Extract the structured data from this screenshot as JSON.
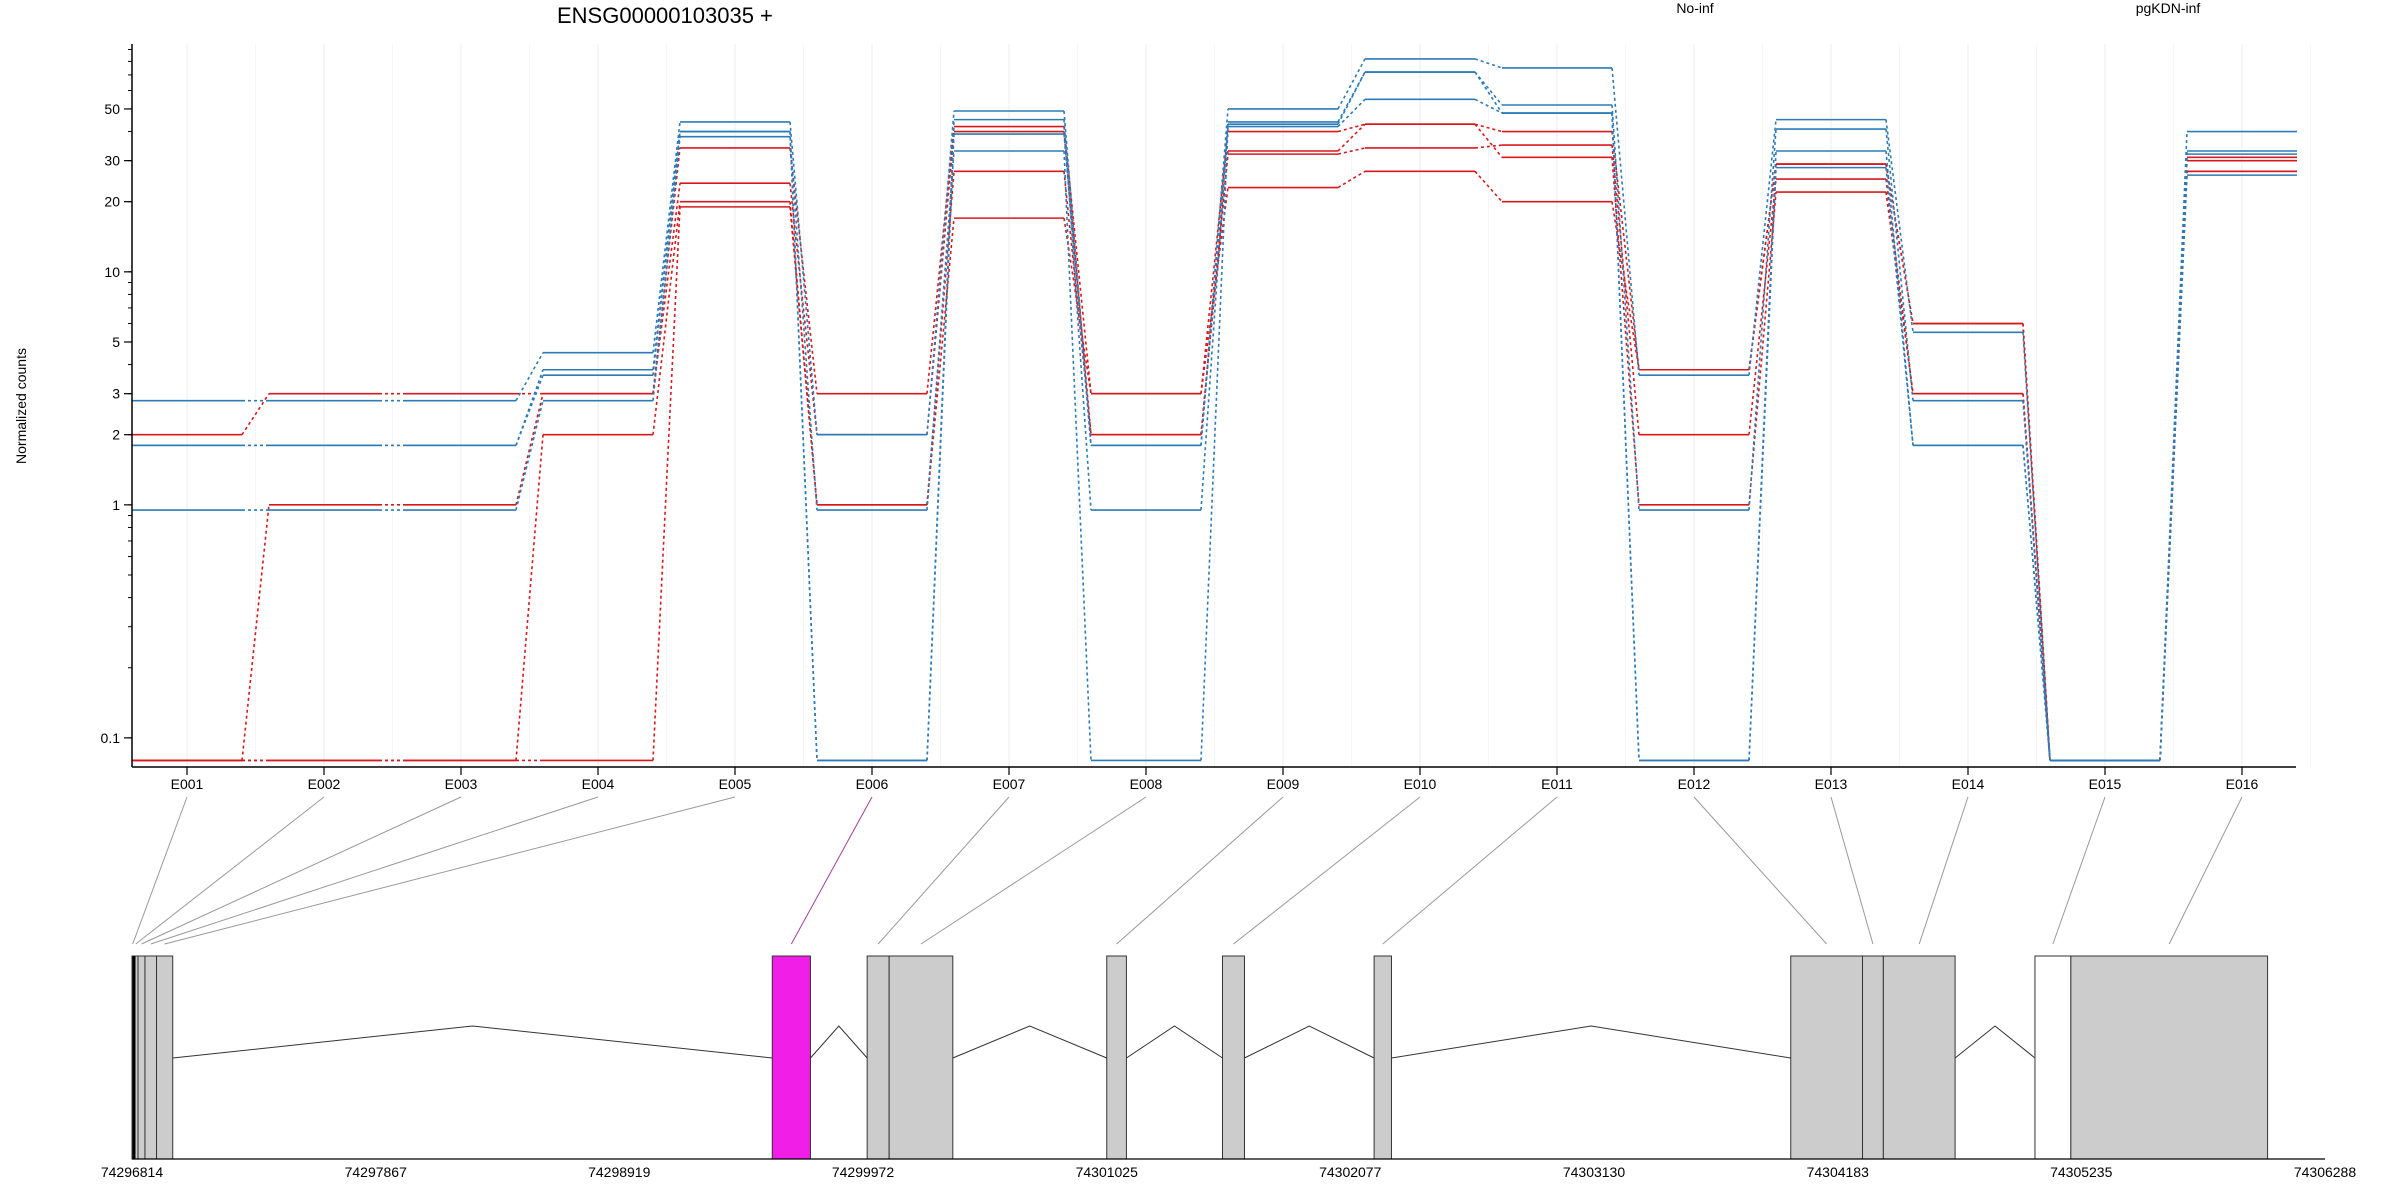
{
  "chart_data": {
    "type": "line",
    "title": "ENSG00000103035 +",
    "ylabel": "Normalized counts",
    "xlabel": "",
    "yscale": "log",
    "ylim": [
      0.075,
      95
    ],
    "ytick_labels": [
      "0.1",
      "1",
      "2",
      "3",
      "5",
      "10",
      "20",
      "30",
      "50"
    ],
    "ytick_values": [
      0.1,
      1,
      2,
      3,
      5,
      10,
      20,
      30,
      50
    ],
    "categories": [
      "E001",
      "E002",
      "E003",
      "E004",
      "E005",
      "E006",
      "E007",
      "E008",
      "E009",
      "E010",
      "E011",
      "E012",
      "E013",
      "E014",
      "E015",
      "E016"
    ],
    "grid": "vertical",
    "legend": [
      {
        "name": "No-inf",
        "color": "#d7191c",
        "placement": "top-center"
      },
      {
        "name": "pgKDN-inf",
        "color": "#2c7bb6",
        "placement": "top-right"
      }
    ],
    "series": [
      {
        "group": "No-inf",
        "values": [
          2,
          3,
          3,
          3,
          34,
          3,
          42,
          3,
          40,
          43,
          40,
          3.8,
          29,
          6,
          0.08,
          31
        ]
      },
      {
        "group": "No-inf",
        "values": [
          0.08,
          1,
          1,
          3,
          24,
          2,
          40,
          2,
          32,
          34,
          35,
          2,
          25,
          3,
          0.08,
          30
        ]
      },
      {
        "group": "No-inf",
        "values": [
          0.08,
          0.08,
          0.08,
          2,
          20,
          1,
          27,
          2,
          33,
          43,
          31,
          1,
          22,
          3,
          0.08,
          27
        ]
      },
      {
        "group": "No-inf",
        "values": [
          0.08,
          0.08,
          0.08,
          0.08,
          19,
          1,
          17,
          3,
          23,
          27,
          20,
          3.8,
          29,
          6,
          0.08,
          27
        ]
      },
      {
        "group": "pgKDN-inf",
        "values": [
          2.8,
          2.8,
          2.8,
          4.5,
          44,
          2,
          49,
          1.8,
          50,
          82,
          75,
          3.6,
          45,
          5.5,
          0.08,
          40
        ]
      },
      {
        "group": "pgKDN-inf",
        "values": [
          1.8,
          1.8,
          1.8,
          3.8,
          40,
          0.08,
          45,
          0.95,
          44,
          72,
          52,
          0.95,
          41,
          2.8,
          0.08,
          33
        ]
      },
      {
        "group": "pgKDN-inf",
        "values": [
          1.8,
          1.8,
          1.8,
          3.6,
          40,
          0.08,
          39,
          1.8,
          43,
          72,
          48,
          0.08,
          33,
          1.8,
          0.08,
          32
        ]
      },
      {
        "group": "pgKDN-inf",
        "values": [
          0.95,
          0.95,
          0.95,
          2.8,
          38,
          0.95,
          33,
          0.08,
          42,
          55,
          48,
          0.08,
          28,
          1.8,
          0.08,
          26
        ]
      }
    ],
    "gene_model": {
      "coordinate_labels": [
        "74296814",
        "74297867",
        "74298919",
        "74299972",
        "74301025",
        "74302077",
        "74303130",
        "74304183",
        "74305235",
        "74306288"
      ],
      "coordinate_values": [
        74296814,
        74297867,
        74298919,
        74299972,
        74301025,
        74302077,
        74303130,
        74304183,
        74305235,
        74306288
      ],
      "exons": [
        {
          "label": "E001",
          "start": 74296814,
          "end": 74296820
        },
        {
          "label": "E002",
          "start": 74296820,
          "end": 74296840
        },
        {
          "label": "E003",
          "start": 74296840,
          "end": 74296870
        },
        {
          "label": "E004",
          "start": 74296870,
          "end": 74296920
        },
        {
          "label": "E005",
          "start": 74296920,
          "end": 74296990
        },
        {
          "label": "E006",
          "start": 74299580,
          "end": 74299745,
          "highlight": true
        },
        {
          "label": "E007",
          "start": 74299990,
          "end": 74300085
        },
        {
          "label": "E008",
          "start": 74300085,
          "end": 74300360
        },
        {
          "label": "E009",
          "start": 74301025,
          "end": 74301110
        },
        {
          "label": "E010",
          "start": 74301525,
          "end": 74301620
        },
        {
          "label": "E011",
          "start": 74302180,
          "end": 74302255
        },
        {
          "label": "E012",
          "start": 74303980,
          "end": 74304290
        },
        {
          "label": "E013",
          "start": 74304290,
          "end": 74304380
        },
        {
          "label": "E014",
          "start": 74304380,
          "end": 74304690
        },
        {
          "label": "E015",
          "start": 74305035,
          "end": 74305190,
          "unfilled": true
        },
        {
          "label": "E016",
          "start": 74305190,
          "end": 74306040
        }
      ],
      "highlight_color": "#f01ee6",
      "exon_color": "#cccccc"
    }
  }
}
